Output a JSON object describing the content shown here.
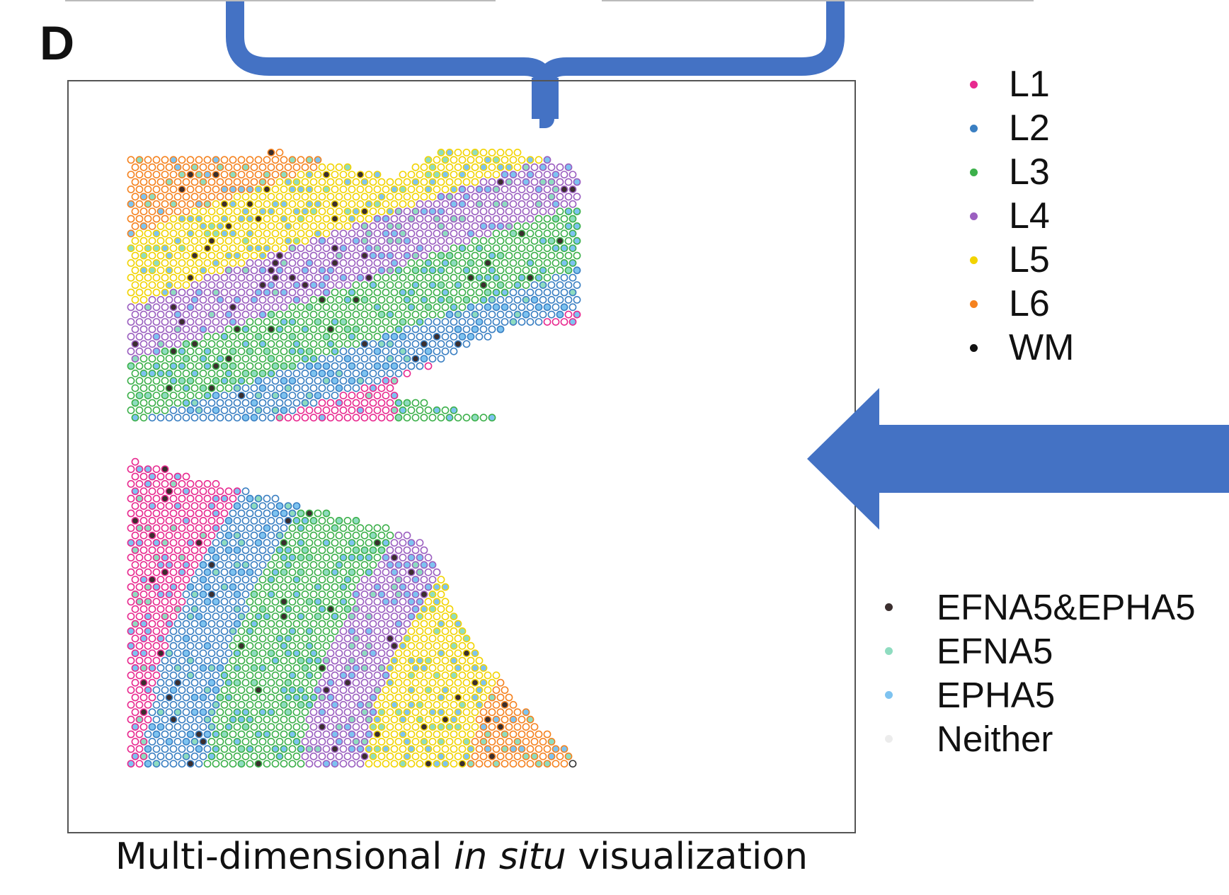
{
  "panel_label": "D",
  "caption": {
    "before": "Multi-dimensional ",
    "italic": "in situ",
    "after": " visualization"
  },
  "layer_legend": {
    "items": [
      {
        "label": "L1",
        "color": "#e8298f"
      },
      {
        "label": "L2",
        "color": "#3a7fc2"
      },
      {
        "label": "L3",
        "color": "#3cb04a"
      },
      {
        "label": "L4",
        "color": "#9b5fc0"
      },
      {
        "label": "L5",
        "color": "#f2d300"
      },
      {
        "label": "L6",
        "color": "#f5821f"
      },
      {
        "label": "WM",
        "color": "#111111"
      }
    ]
  },
  "gene_legend": {
    "items": [
      {
        "label": "EFNA5&EPHA5",
        "color": "#3b2f2f"
      },
      {
        "label": "EFNA5",
        "color": "#8fdcc0"
      },
      {
        "label": "EPHA5",
        "color": "#7ec3f0"
      },
      {
        "label": "Neither",
        "color": "#ececec"
      }
    ]
  },
  "colors": {
    "arrow": "#4472c4",
    "frame": "#555555"
  }
}
